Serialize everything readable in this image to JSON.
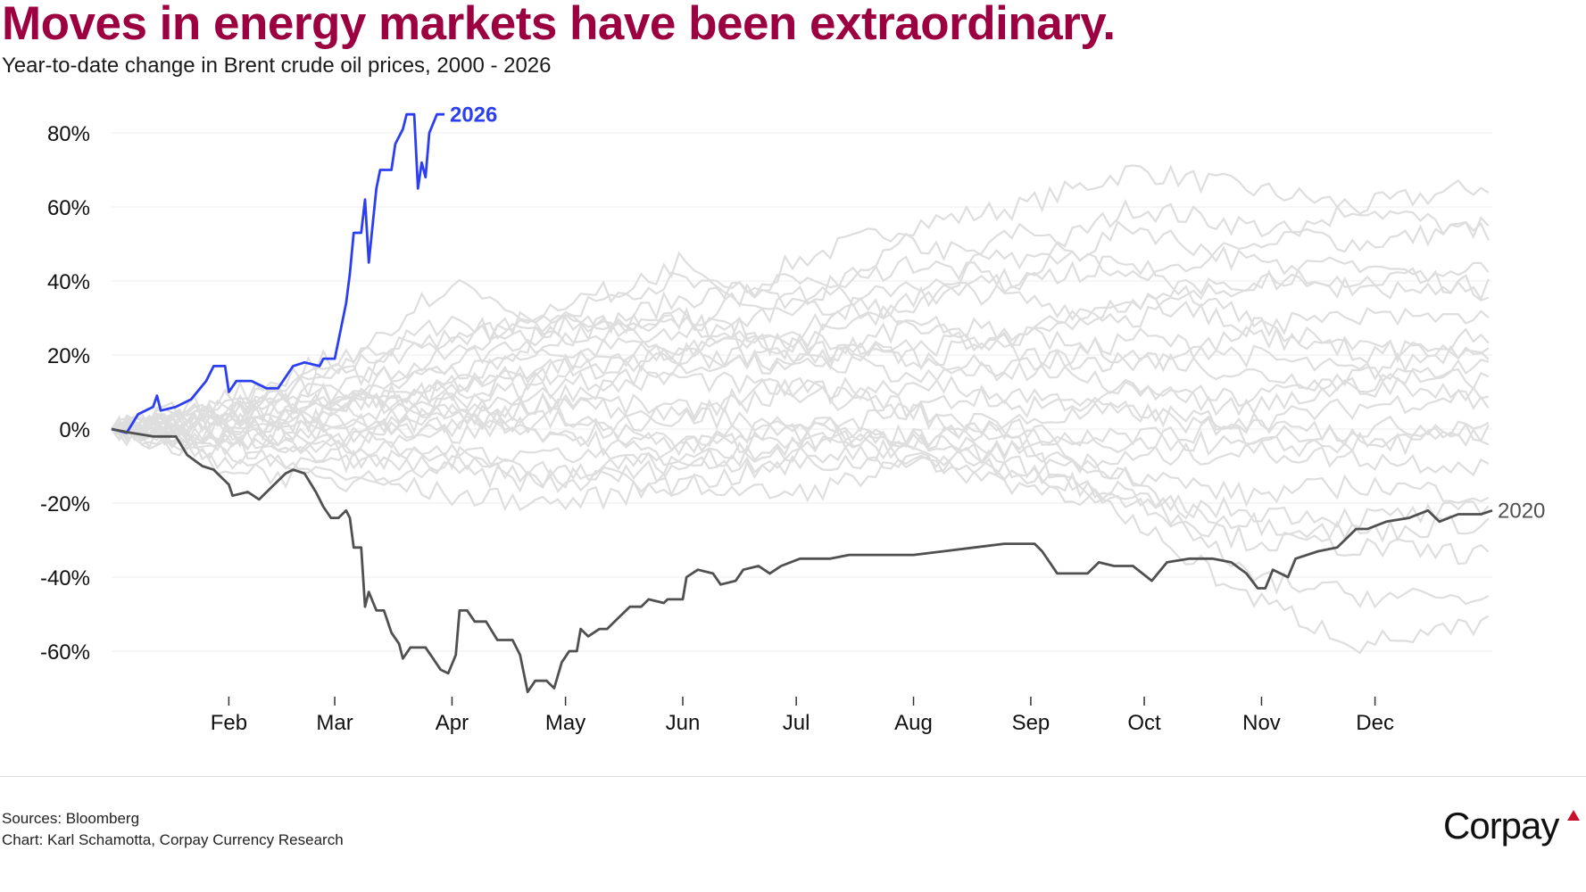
{
  "header": {
    "title": "Moves in energy markets have been extraordinary.",
    "subtitle": "Year-to-date change in Brent crude oil prices, 2000 - 2026"
  },
  "footer": {
    "sources": "Sources: Bloomberg",
    "credit": "Chart: Karl Schamotta, Corpay Currency Research",
    "logo": "Corpay"
  },
  "colors": {
    "title": "#9c0040",
    "highlight_2026": "#2b3ff0",
    "highlight_2020": "#505050",
    "background_series": "#dedede",
    "grid": "#eeeeee"
  },
  "chart_data": {
    "type": "line",
    "title": "Year-to-date change in Brent crude oil prices, 2000 - 2026",
    "xlabel": "",
    "ylabel": "",
    "x_unit": "day of year",
    "xlim": [
      0,
      365
    ],
    "ylim": [
      -72,
      86
    ],
    "y_ticks": [
      80,
      60,
      40,
      20,
      0,
      -20,
      -40,
      -60
    ],
    "y_tick_labels": [
      "80%",
      "60%",
      "40%",
      "20%",
      "0%",
      "-20%",
      "-40%",
      "-60%"
    ],
    "x_ticks": [
      {
        "label": "Feb",
        "day": 31
      },
      {
        "label": "Mar",
        "day": 59
      },
      {
        "label": "Apr",
        "day": 90
      },
      {
        "label": "May",
        "day": 120
      },
      {
        "label": "Jun",
        "day": 151
      },
      {
        "label": "Jul",
        "day": 181
      },
      {
        "label": "Aug",
        "day": 212
      },
      {
        "label": "Sep",
        "day": 243
      },
      {
        "label": "Oct",
        "day": 273
      },
      {
        "label": "Nov",
        "day": 304
      },
      {
        "label": "Dec",
        "day": 334
      }
    ],
    "grid": true,
    "highlight_series": [
      {
        "name": "2026",
        "label": "2026",
        "color": "#2b3ff0",
        "x": [
          0,
          4,
          7,
          11,
          12,
          13,
          17,
          21,
          25,
          27,
          30,
          31,
          33,
          37,
          41,
          44,
          48,
          51,
          55,
          56,
          59,
          62,
          63,
          64,
          66,
          67,
          68,
          70,
          71,
          74,
          75,
          77,
          78,
          80,
          81,
          82,
          83,
          84,
          86,
          88
        ],
        "y": [
          0,
          -1,
          4,
          6,
          9,
          5,
          6,
          8,
          13,
          17,
          17,
          10,
          13,
          13,
          11,
          11,
          17,
          18,
          17,
          19,
          19,
          34,
          42,
          53,
          53,
          62,
          45,
          65,
          70,
          70,
          77,
          81,
          85,
          85,
          65,
          72,
          68,
          80,
          85,
          85
        ]
      },
      {
        "name": "2020",
        "label": "2020",
        "color": "#505050",
        "x": [
          0,
          5,
          11,
          17,
          20,
          24,
          27,
          31,
          32,
          36,
          39,
          42,
          46,
          48,
          51,
          54,
          56,
          58,
          60,
          62,
          63,
          64,
          66,
          67,
          68,
          70,
          72,
          74,
          76,
          77,
          79,
          83,
          85,
          87,
          89,
          91,
          92,
          94,
          96,
          99,
          102,
          106,
          108,
          110,
          112,
          115,
          117,
          119,
          121,
          123,
          124,
          126,
          129,
          131,
          134,
          137,
          140,
          142,
          146,
          147,
          151,
          152,
          155,
          159,
          161,
          165,
          167,
          171,
          174,
          177,
          182,
          190,
          195,
          204,
          212,
          220,
          228,
          236,
          244,
          246,
          250,
          254,
          258,
          261,
          265,
          270,
          275,
          279,
          285,
          291,
          296,
          300,
          303,
          305,
          307,
          311,
          313,
          319,
          324,
          329,
          332,
          337,
          343,
          348,
          351,
          356,
          362,
          365
        ],
        "y": [
          0,
          -1,
          -2,
          -2,
          -7,
          -10,
          -11,
          -15,
          -18,
          -17,
          -19,
          -16,
          -12,
          -11,
          -12,
          -17,
          -21,
          -24,
          -24,
          -22,
          -24,
          -32,
          -32,
          -48,
          -44,
          -49,
          -49,
          -55,
          -58,
          -62,
          -59,
          -59,
          -62,
          -65,
          -66,
          -61,
          -49,
          -49,
          -52,
          -52,
          -57,
          -57,
          -61,
          -71,
          -68,
          -68,
          -70,
          -63,
          -60,
          -60,
          -54,
          -56,
          -54,
          -54,
          -51,
          -48,
          -48,
          -46,
          -47,
          -46,
          -46,
          -40,
          -38,
          -39,
          -42,
          -41,
          -38,
          -37,
          -39,
          -37,
          -35,
          -35,
          -34,
          -34,
          -34,
          -33,
          -32,
          -31,
          -31,
          -33,
          -39,
          -39,
          -39,
          -36,
          -37,
          -37,
          -41,
          -36,
          -35,
          -35,
          -36,
          -39,
          -43,
          -43,
          -38,
          -40,
          -35,
          -33,
          -32,
          -27,
          -27,
          -25,
          -24,
          -22,
          -25,
          -23,
          -23,
          -22
        ]
      }
    ],
    "background_series_x": [
      0,
      30,
      60,
      90,
      120,
      150,
      180,
      210,
      240,
      270,
      300,
      330,
      365
    ],
    "background_series": [
      [
        0,
        5,
        15,
        30,
        20,
        25,
        45,
        55,
        60,
        70,
        65,
        60,
        66
      ],
      [
        0,
        3,
        10,
        20,
        35,
        40,
        30,
        50,
        45,
        60,
        55,
        50,
        55
      ],
      [
        0,
        4,
        8,
        15,
        25,
        35,
        40,
        30,
        55,
        40,
        50,
        60,
        52
      ],
      [
        0,
        2,
        12,
        25,
        30,
        20,
        35,
        45,
        40,
        55,
        45,
        40,
        43
      ],
      [
        0,
        6,
        14,
        18,
        28,
        30,
        25,
        40,
        35,
        30,
        40,
        45,
        37
      ],
      [
        0,
        -2,
        5,
        10,
        15,
        20,
        25,
        20,
        15,
        25,
        20,
        15,
        24
      ],
      [
        0,
        3,
        7,
        12,
        18,
        22,
        15,
        28,
        20,
        18,
        25,
        22,
        20
      ],
      [
        0,
        1,
        4,
        8,
        12,
        16,
        22,
        18,
        25,
        20,
        15,
        12,
        18
      ],
      [
        0,
        -3,
        2,
        6,
        10,
        14,
        10,
        12,
        18,
        10,
        8,
        15,
        13
      ],
      [
        0,
        2,
        -2,
        4,
        8,
        5,
        12,
        6,
        10,
        4,
        2,
        6,
        10
      ],
      [
        0,
        -4,
        -2,
        2,
        -3,
        5,
        0,
        -4,
        2,
        5,
        -2,
        0,
        2
      ],
      [
        0,
        1,
        3,
        -2,
        4,
        -5,
        2,
        -3,
        0,
        -4,
        2,
        -2,
        -1
      ],
      [
        0,
        -2,
        -5,
        -8,
        -6,
        -10,
        -4,
        -2,
        -6,
        -2,
        -5,
        -4,
        -3
      ],
      [
        0,
        -5,
        -8,
        -12,
        -15,
        -10,
        -8,
        -5,
        -12,
        -8,
        -6,
        -8,
        -10
      ],
      [
        0,
        -6,
        -10,
        -5,
        -12,
        -15,
        -18,
        -10,
        -5,
        -12,
        -18,
        -15,
        -18
      ],
      [
        0,
        -8,
        -12,
        -18,
        -20,
        -15,
        -10,
        -8,
        -15,
        -20,
        -22,
        -24,
        -22
      ],
      [
        0,
        -10,
        -15,
        -8,
        -14,
        -5,
        2,
        -8,
        -12,
        -18,
        -25,
        -28,
        -25
      ],
      [
        0,
        -5,
        -3,
        5,
        -2,
        -8,
        -5,
        -2,
        -10,
        -20,
        -30,
        -32,
        -34
      ],
      [
        0,
        4,
        10,
        5,
        2,
        -5,
        -2,
        5,
        0,
        -15,
        -40,
        -45,
        -46
      ],
      [
        0,
        2,
        -5,
        0,
        8,
        3,
        10,
        5,
        -5,
        -25,
        -45,
        -58,
        -53
      ],
      [
        0,
        8,
        20,
        25,
        30,
        28,
        22,
        35,
        40,
        45,
        30,
        20,
        25
      ],
      [
        0,
        5,
        18,
        40,
        25,
        30,
        20,
        15,
        5,
        10,
        5,
        12,
        8
      ],
      [
        0,
        3,
        8,
        10,
        30,
        45,
        35,
        30,
        25,
        35,
        28,
        30,
        30
      ],
      [
        0,
        -1,
        6,
        12,
        16,
        20,
        18,
        22,
        25,
        35,
        40,
        38,
        38
      ]
    ]
  }
}
